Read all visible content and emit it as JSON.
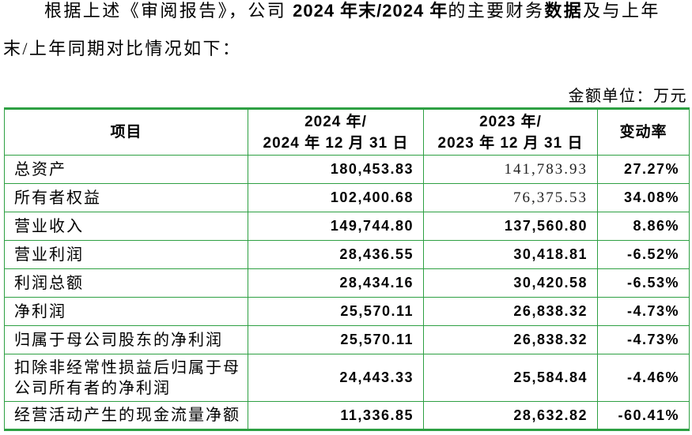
{
  "intro": {
    "line1_pre": "根据上述《审阅报告》，公司 ",
    "line1_bold1": "2024 年末/2024 年",
    "line1_mid": "的主要财务",
    "line1_bold2": "数据",
    "line1_post": "及与上年",
    "line2": "末/上年同期对比情况如下："
  },
  "unit_note": "金额单位：万元",
  "colors": {
    "table_border": "#2ea043"
  },
  "table": {
    "headers": {
      "item": "项目",
      "col2024_line1": "2024 年/",
      "col2024_line2": "2024 年 12 月 31 日",
      "col2023_line1": "2023 年/",
      "col2023_line2": "2023 年 12 月 31 日",
      "change": "变动率"
    },
    "rows": [
      {
        "label": "总资产",
        "v2024": "180,453.83",
        "v2023": "141,783.93",
        "change": "27.27%"
      },
      {
        "label": "所有者权益",
        "v2024": "102,400.68",
        "v2023": "76,375.53",
        "change": "34.08%"
      },
      {
        "label": "营业收入",
        "v2024": "149,744.80",
        "v2023": "137,560.80",
        "change": "8.86%"
      },
      {
        "label": "营业利润",
        "v2024": "28,436.55",
        "v2023": "30,418.81",
        "change": "-6.52%"
      },
      {
        "label": "利润总额",
        "v2024": "28,434.16",
        "v2023": "30,420.58",
        "change": "-6.53%"
      },
      {
        "label": "净利润",
        "v2024": "25,570.11",
        "v2023": "26,838.32",
        "change": "-4.73%"
      },
      {
        "label": "归属于母公司股东的净利润",
        "v2024": "25,570.11",
        "v2023": "26,838.32",
        "change": "-4.73%"
      },
      {
        "label": [
          "扣除非经常性损益后归属于母",
          "公司所有者的净利润"
        ],
        "v2024": "24,443.33",
        "v2023": "25,584.84",
        "change": "-4.46%"
      },
      {
        "label": "经营活动产生的现金流量净额",
        "v2024": "11,336.85",
        "v2023": "28,632.82",
        "change": "-60.41%"
      }
    ]
  }
}
